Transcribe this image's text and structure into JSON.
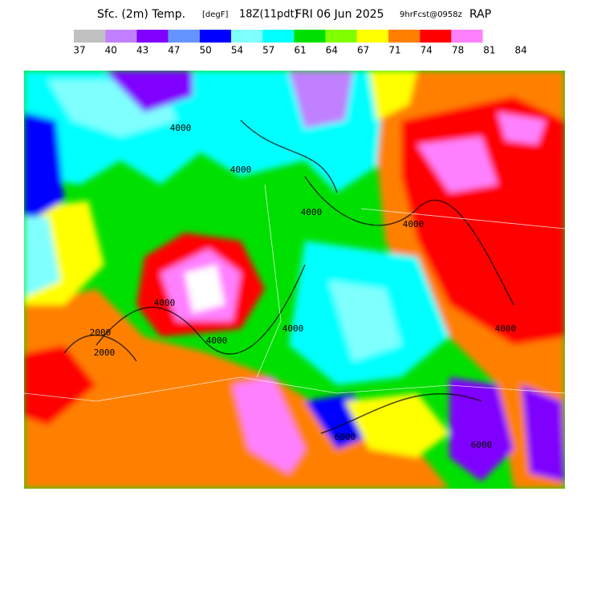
{
  "header": {
    "segments": [
      {
        "text": "Sfc. (2m) Temp.",
        "size": 14
      },
      {
        "text": "[degF]",
        "size": 10
      },
      {
        "text": "18Z(11pdt)",
        "size": 13
      },
      {
        "text": "FRI 06 Jun 2025",
        "size": 14
      },
      {
        "text": "9hrFcst@0958z",
        "size": 10
      },
      {
        "text": "RAP",
        "size": 14
      }
    ]
  },
  "colorbar": {
    "colors": [
      "#c0c0c0",
      "#c080ff",
      "#8000ff",
      "#6495ff",
      "#0000ff",
      "#80ffff",
      "#00ffff",
      "#00e000",
      "#80ff00",
      "#ffff00",
      "#ff8000",
      "#ff0000",
      "#ff80ff"
    ],
    "labels": [
      37,
      40,
      43,
      47,
      50,
      54,
      57,
      61,
      64,
      67,
      71,
      74,
      78,
      81,
      84
    ]
  },
  "map": {
    "contour_labels": [
      "4000",
      "4000",
      "2000",
      "2000",
      "4000",
      "4000",
      "4000",
      "4000",
      "4000",
      "6000",
      "6000",
      "4000"
    ]
  }
}
